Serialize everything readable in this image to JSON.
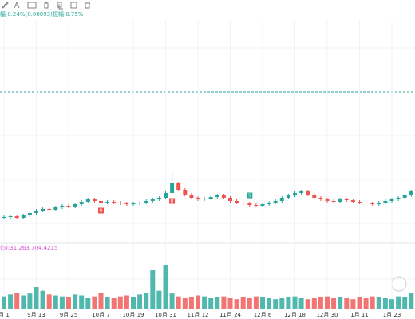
{
  "header": {
    "change": "幅 0.24%(0.00093)",
    "amplitude": "振幅 0.75%"
  },
  "volume_label": "(5):31,263,784.4215",
  "markers": [
    "B",
    "B",
    "S"
  ],
  "chart_data": {
    "type": "candlestick",
    "categories": [
      "月 1",
      null,
      null,
      null,
      null,
      "9月 13",
      null,
      null,
      null,
      null,
      "9月 25",
      null,
      null,
      null,
      null,
      "10月 7",
      null,
      null,
      null,
      null,
      "10月 19",
      null,
      null,
      null,
      null,
      "10月 31",
      null,
      null,
      null,
      null,
      "11月 12",
      null,
      null,
      null,
      null,
      "11月 24",
      null,
      null,
      null,
      null,
      "12月 6",
      null,
      null,
      null,
      null,
      "12月 18",
      null,
      null,
      null,
      null,
      "12月 30",
      null,
      null,
      null,
      null,
      "1月 11",
      null,
      null,
      null,
      null,
      "1月 23",
      null,
      null,
      null
    ],
    "open": [
      27,
      28,
      29,
      27,
      30,
      33,
      36,
      38,
      37,
      40,
      42,
      41,
      44,
      47,
      50,
      48,
      46,
      47,
      46,
      45,
      44,
      45,
      46,
      48,
      50,
      52,
      58,
      70,
      62,
      56,
      52,
      50,
      51,
      53,
      55,
      52,
      48,
      46,
      45,
      43,
      42,
      44,
      46,
      48,
      52,
      55,
      58,
      60,
      56,
      52,
      50,
      48,
      47,
      50,
      49,
      47,
      46,
      45,
      44,
      46,
      48,
      50,
      52,
      55
    ],
    "high": [
      30,
      31,
      31,
      32,
      35,
      38,
      40,
      40,
      42,
      44,
      44,
      46,
      49,
      52,
      52,
      50,
      49,
      49,
      48,
      47,
      47,
      48,
      50,
      52,
      54,
      60,
      85,
      72,
      64,
      58,
      54,
      53,
      55,
      57,
      57,
      54,
      50,
      48,
      47,
      45,
      46,
      48,
      50,
      54,
      57,
      60,
      62,
      62,
      58,
      54,
      52,
      50,
      52,
      52,
      51,
      49,
      48,
      47,
      48,
      50,
      52,
      54,
      57,
      62
    ],
    "low": [
      25,
      26,
      25,
      25,
      28,
      31,
      34,
      35,
      35,
      38,
      39,
      39,
      42,
      45,
      46,
      44,
      44,
      44,
      43,
      42,
      42,
      43,
      44,
      46,
      48,
      50,
      56,
      60,
      54,
      50,
      48,
      48,
      49,
      51,
      50,
      46,
      44,
      43,
      41,
      40,
      40,
      42,
      44,
      46,
      50,
      53,
      56,
      54,
      50,
      48,
      46,
      45,
      45,
      47,
      45,
      44,
      43,
      42,
      42,
      44,
      46,
      48,
      50,
      53
    ],
    "close": [
      28,
      29,
      27,
      30,
      33,
      36,
      38,
      37,
      40,
      42,
      41,
      44,
      47,
      50,
      48,
      46,
      47,
      46,
      45,
      44,
      45,
      46,
      48,
      50,
      52,
      58,
      70,
      62,
      56,
      52,
      50,
      51,
      53,
      55,
      52,
      48,
      46,
      45,
      43,
      42,
      44,
      46,
      48,
      52,
      55,
      58,
      60,
      56,
      52,
      50,
      48,
      47,
      50,
      49,
      47,
      46,
      45,
      44,
      46,
      48,
      50,
      52,
      55,
      60
    ],
    "volume": [
      14,
      16,
      18,
      15,
      17,
      24,
      20,
      16,
      15,
      14,
      13,
      16,
      15,
      12,
      14,
      18,
      13,
      12,
      14,
      15,
      13,
      16,
      18,
      42,
      20,
      48,
      17,
      14,
      12,
      13,
      15,
      14,
      12,
      13,
      14,
      12,
      11,
      13,
      12,
      14,
      13,
      12,
      11,
      12,
      13,
      14,
      12,
      11,
      12,
      13,
      14,
      12,
      13,
      12,
      11,
      13,
      12,
      14,
      13,
      12,
      11,
      14,
      13,
      18
    ],
    "ylim": [
      0,
      100
    ],
    "volume_ylim": [
      0,
      60
    ],
    "up_color": "#26a69a",
    "down_color": "#ef5350"
  }
}
